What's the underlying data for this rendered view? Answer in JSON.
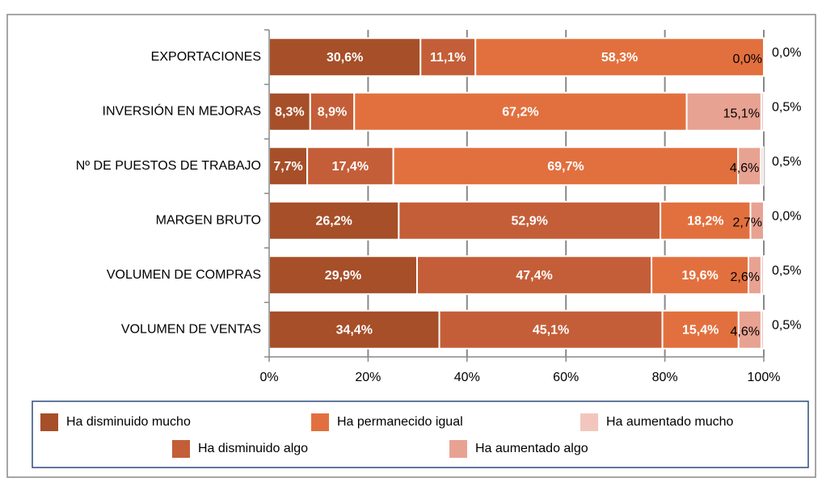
{
  "chart_data": {
    "type": "stacked-bar-horizontal",
    "categories": [
      "EXPORTACIONES",
      "INVERSIÓN EN MEJORAS",
      "Nº DE PUESTOS DE TRABAJO",
      "MARGEN BRUTO",
      "VOLUMEN DE COMPRAS",
      "VOLUMEN DE VENTAS"
    ],
    "series": [
      {
        "name": "Ha disminuido mucho",
        "color": "#a64f29",
        "values": [
          30.6,
          8.3,
          7.7,
          26.2,
          29.9,
          34.4
        ],
        "value_labels": [
          "30,6%",
          "8,3%",
          "7,7%",
          "26,2%",
          "29,9%",
          "34,4%"
        ]
      },
      {
        "name": "Ha disminuido algo",
        "color": "#c45e38",
        "values": [
          11.1,
          8.9,
          17.4,
          52.9,
          47.4,
          45.1
        ],
        "value_labels": [
          "11,1%",
          "8,9%",
          "17,4%",
          "52,9%",
          "47,4%",
          "45,1%"
        ]
      },
      {
        "name": "Ha permanecido igual",
        "color": "#e2703e",
        "values": [
          58.3,
          67.2,
          69.7,
          18.2,
          19.6,
          15.4
        ],
        "value_labels": [
          "58,3%",
          "67,2%",
          "69,7%",
          "18,2%",
          "19,6%",
          "15,4%"
        ]
      },
      {
        "name": "Ha aumentado algo",
        "color": "#e8a292",
        "values": [
          0.0,
          15.1,
          4.6,
          2.7,
          2.6,
          4.6
        ],
        "value_labels": [
          "0,0%",
          "15,1%",
          "4,6%",
          "2,7%",
          "2,6%",
          "4,6%"
        ]
      },
      {
        "name": "Ha aumentado mucho",
        "color": "#f2c6bd",
        "values": [
          0.0,
          0.5,
          0.5,
          0.0,
          0.5,
          0.5
        ],
        "value_labels": [
          "0,0%",
          "0,5%",
          "0,5%",
          "0,0%",
          "0,5%",
          "0,5%"
        ]
      }
    ],
    "xlim": [
      0,
      100
    ],
    "xticks": [
      {
        "value": 0,
        "label": "0%"
      },
      {
        "value": 20,
        "label": "20%"
      },
      {
        "value": 40,
        "label": "40%"
      },
      {
        "value": 60,
        "label": "60%"
      },
      {
        "value": 80,
        "label": "80%"
      },
      {
        "value": 100,
        "label": "100%"
      }
    ],
    "grid": true
  }
}
